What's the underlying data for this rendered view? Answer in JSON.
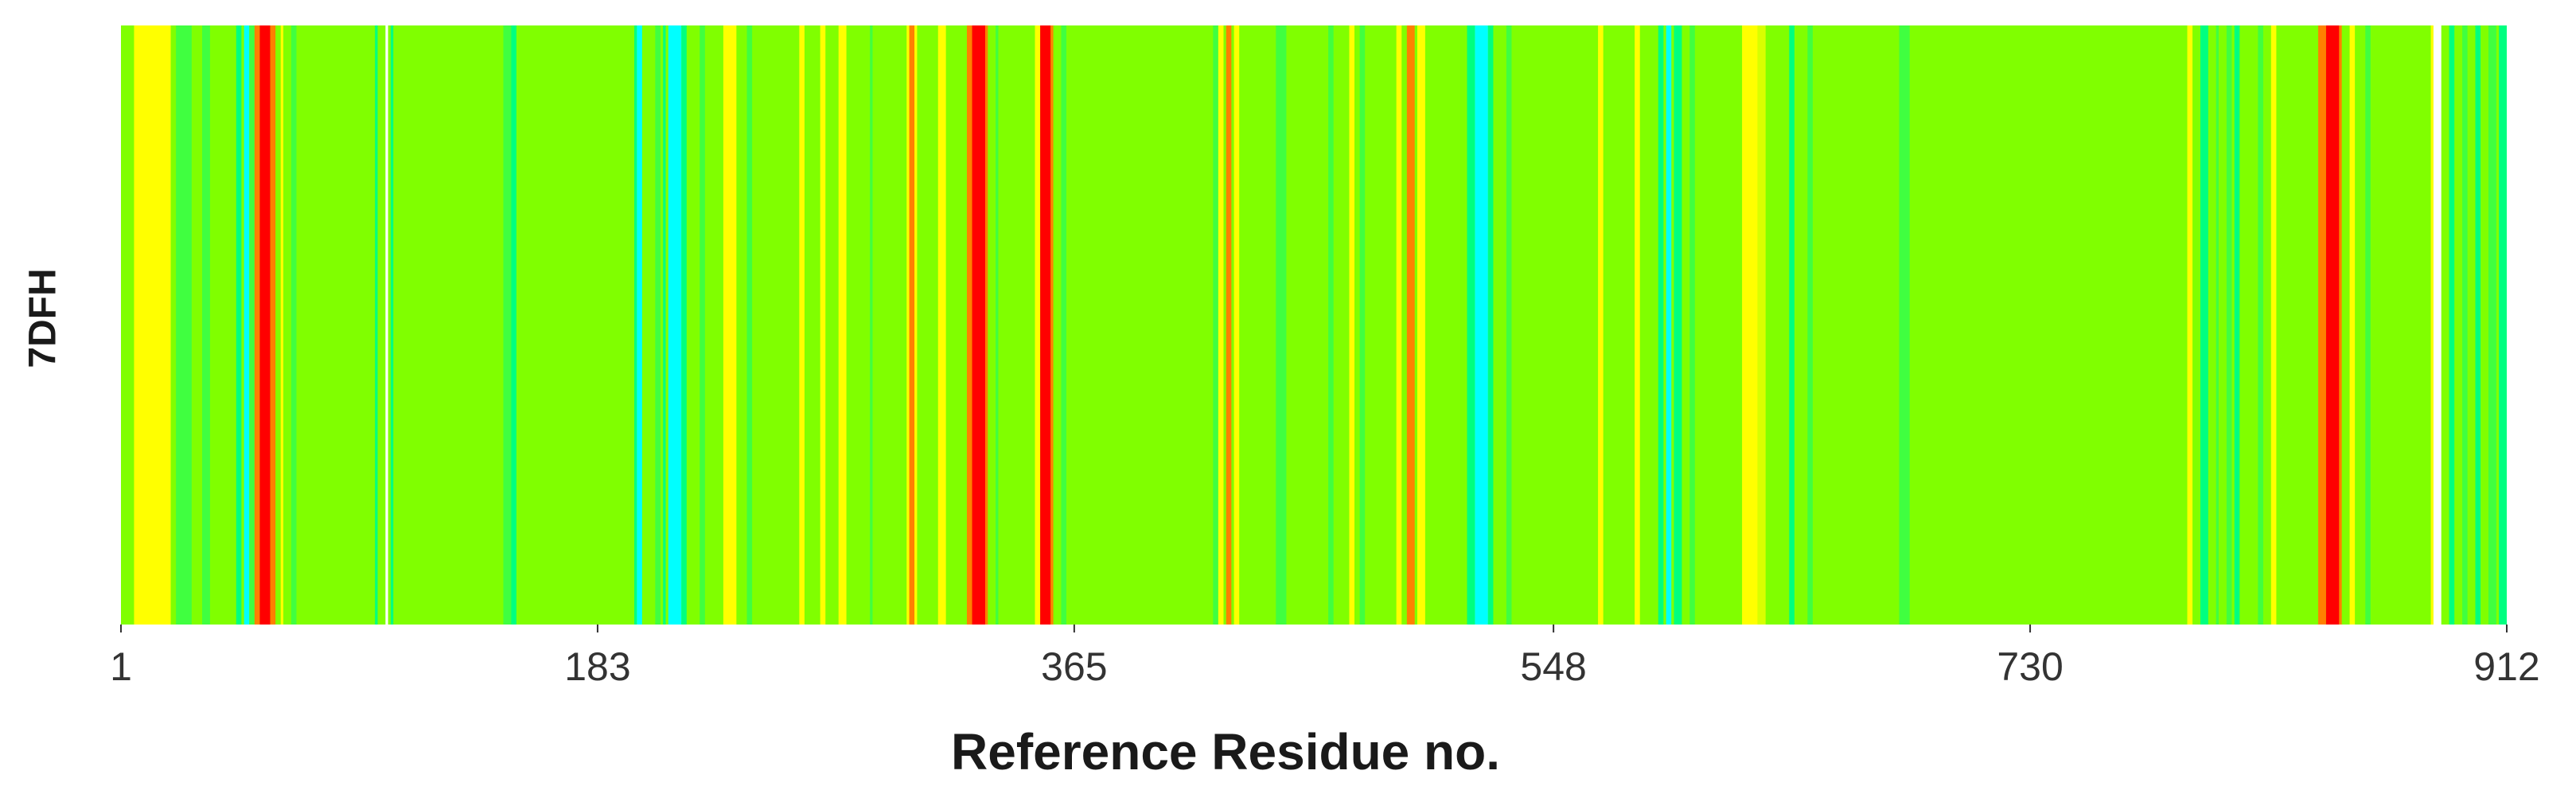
{
  "chart_data": {
    "type": "heatmap",
    "title": "",
    "ylabel": "7DFH",
    "xlabel": "Reference Residue no.",
    "x_range": [
      1,
      912
    ],
    "x_ticks": [
      1,
      183,
      365,
      548,
      730,
      912
    ],
    "base_color": "#80ff00",
    "colors": {
      "yellow": "#ffff00",
      "lime-yellow": "#d8ff00",
      "green": "#40ff40",
      "spring-green": "#00ff80",
      "cyan": "#00ffff",
      "orange": "#ff8000",
      "red": "#ff0000",
      "white": "#ffffff"
    },
    "bands": [
      {
        "start": 6,
        "end": 20,
        "color": "yellow"
      },
      {
        "start": 22,
        "end": 28,
        "color": "green"
      },
      {
        "start": 32,
        "end": 35,
        "color": "green"
      },
      {
        "start": 45,
        "end": 47,
        "color": "spring-green"
      },
      {
        "start": 48,
        "end": 50,
        "color": "cyan"
      },
      {
        "start": 50,
        "end": 52,
        "color": "green"
      },
      {
        "start": 52,
        "end": 54,
        "color": "orange"
      },
      {
        "start": 54,
        "end": 58,
        "color": "red"
      },
      {
        "start": 58,
        "end": 60,
        "color": "orange"
      },
      {
        "start": 62,
        "end": 63,
        "color": "yellow"
      },
      {
        "start": 66,
        "end": 68,
        "color": "green"
      },
      {
        "start": 98,
        "end": 99,
        "color": "spring-green"
      },
      {
        "start": 102,
        "end": 103,
        "color": "white"
      },
      {
        "start": 104,
        "end": 105,
        "color": "spring-green"
      },
      {
        "start": 147,
        "end": 150,
        "color": "green"
      },
      {
        "start": 150,
        "end": 152,
        "color": "spring-green"
      },
      {
        "start": 197,
        "end": 198,
        "color": "spring-green"
      },
      {
        "start": 198,
        "end": 200,
        "color": "cyan"
      },
      {
        "start": 205,
        "end": 207,
        "color": "green"
      },
      {
        "start": 208,
        "end": 209,
        "color": "spring-green"
      },
      {
        "start": 210,
        "end": 215,
        "color": "cyan"
      },
      {
        "start": 215,
        "end": 217,
        "color": "spring-green"
      },
      {
        "start": 222,
        "end": 224,
        "color": "green"
      },
      {
        "start": 231,
        "end": 236,
        "color": "yellow"
      },
      {
        "start": 240,
        "end": 242,
        "color": "green"
      },
      {
        "start": 260,
        "end": 262,
        "color": "yellow"
      },
      {
        "start": 268,
        "end": 270,
        "color": "yellow"
      },
      {
        "start": 275,
        "end": 278,
        "color": "yellow"
      },
      {
        "start": 287,
        "end": 288,
        "color": "green"
      },
      {
        "start": 301,
        "end": 302,
        "color": "yellow"
      },
      {
        "start": 302,
        "end": 304,
        "color": "orange"
      },
      {
        "start": 304,
        "end": 305,
        "color": "yellow"
      },
      {
        "start": 313,
        "end": 316,
        "color": "yellow"
      },
      {
        "start": 324,
        "end": 326,
        "color": "orange"
      },
      {
        "start": 326,
        "end": 331,
        "color": "red"
      },
      {
        "start": 331,
        "end": 332,
        "color": "orange"
      },
      {
        "start": 335,
        "end": 336,
        "color": "green"
      },
      {
        "start": 350,
        "end": 352,
        "color": "yellow"
      },
      {
        "start": 352,
        "end": 356,
        "color": "red"
      },
      {
        "start": 356,
        "end": 357,
        "color": "orange"
      },
      {
        "start": 360,
        "end": 362,
        "color": "green"
      },
      {
        "start": 418,
        "end": 420,
        "color": "green"
      },
      {
        "start": 420,
        "end": 422,
        "color": "yellow"
      },
      {
        "start": 423,
        "end": 425,
        "color": "orange"
      },
      {
        "start": 426,
        "end": 428,
        "color": "yellow"
      },
      {
        "start": 442,
        "end": 446,
        "color": "green"
      },
      {
        "start": 462,
        "end": 464,
        "color": "green"
      },
      {
        "start": 470,
        "end": 472,
        "color": "yellow"
      },
      {
        "start": 474,
        "end": 476,
        "color": "green"
      },
      {
        "start": 488,
        "end": 490,
        "color": "yellow"
      },
      {
        "start": 492,
        "end": 495,
        "color": "orange"
      },
      {
        "start": 496,
        "end": 499,
        "color": "yellow"
      },
      {
        "start": 515,
        "end": 518,
        "color": "spring-green"
      },
      {
        "start": 518,
        "end": 523,
        "color": "cyan"
      },
      {
        "start": 523,
        "end": 525,
        "color": "spring-green"
      },
      {
        "start": 530,
        "end": 532,
        "color": "green"
      },
      {
        "start": 565,
        "end": 567,
        "color": "yellow"
      },
      {
        "start": 579,
        "end": 581,
        "color": "yellow"
      },
      {
        "start": 588,
        "end": 590,
        "color": "spring-green"
      },
      {
        "start": 591,
        "end": 593,
        "color": "cyan"
      },
      {
        "start": 594,
        "end": 597,
        "color": "spring-green"
      },
      {
        "start": 600,
        "end": 602,
        "color": "green"
      },
      {
        "start": 620,
        "end": 626,
        "color": "yellow"
      },
      {
        "start": 626,
        "end": 629,
        "color": "lime-yellow"
      },
      {
        "start": 638,
        "end": 640,
        "color": "spring-green"
      },
      {
        "start": 645,
        "end": 647,
        "color": "green"
      },
      {
        "start": 680,
        "end": 684,
        "color": "green"
      },
      {
        "start": 790,
        "end": 792,
        "color": "yellow"
      },
      {
        "start": 795,
        "end": 798,
        "color": "spring-green"
      },
      {
        "start": 801,
        "end": 802,
        "color": "green"
      },
      {
        "start": 805,
        "end": 807,
        "color": "green"
      },
      {
        "start": 808,
        "end": 810,
        "color": "spring-green"
      },
      {
        "start": 817,
        "end": 819,
        "color": "green"
      },
      {
        "start": 822,
        "end": 824,
        "color": "yellow"
      },
      {
        "start": 840,
        "end": 843,
        "color": "orange"
      },
      {
        "start": 843,
        "end": 848,
        "color": "red"
      },
      {
        "start": 848,
        "end": 849,
        "color": "orange"
      },
      {
        "start": 852,
        "end": 854,
        "color": "yellow"
      },
      {
        "start": 858,
        "end": 860,
        "color": "green"
      },
      {
        "start": 883,
        "end": 884,
        "color": "yellow"
      },
      {
        "start": 884,
        "end": 887,
        "color": "white"
      },
      {
        "start": 890,
        "end": 892,
        "color": "spring-green"
      },
      {
        "start": 895,
        "end": 897,
        "color": "green"
      },
      {
        "start": 900,
        "end": 902,
        "color": "spring-green"
      },
      {
        "start": 905,
        "end": 908,
        "color": "green"
      },
      {
        "start": 909,
        "end": 912,
        "color": "spring-green"
      }
    ]
  }
}
